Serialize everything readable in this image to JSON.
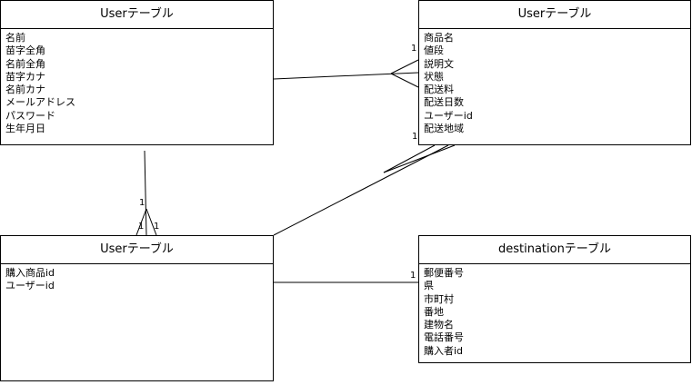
{
  "entities": [
    {
      "id": "user",
      "title": "Userテーブル",
      "fields": [
        "名前",
        "苗字全角",
        "名前全角",
        "苗字カナ",
        "名前カナ",
        "メールアドレス",
        "パスワード",
        "生年月日"
      ]
    },
    {
      "id": "item",
      "title": "Userテーブル",
      "fields": [
        "商品名",
        "値段",
        "説明文",
        "状態",
        "配送料",
        "配送日数",
        "ユーザーid",
        "配送地域"
      ]
    },
    {
      "id": "purchase",
      "title": "Userテーブル",
      "fields": [
        "購入商品id",
        "ユーザーid"
      ]
    },
    {
      "id": "destination",
      "title": "destinationテーブル",
      "fields": [
        "郵便番号",
        "県",
        "市町村",
        "番地",
        "建物名",
        "電話番号",
        "購入者id"
      ]
    }
  ],
  "cardinality_labels": {
    "item_top": "1",
    "item_bottom": "1",
    "purchase_top": "1",
    "purchase_left": "1",
    "purchase_right": "1",
    "destination": "1"
  }
}
